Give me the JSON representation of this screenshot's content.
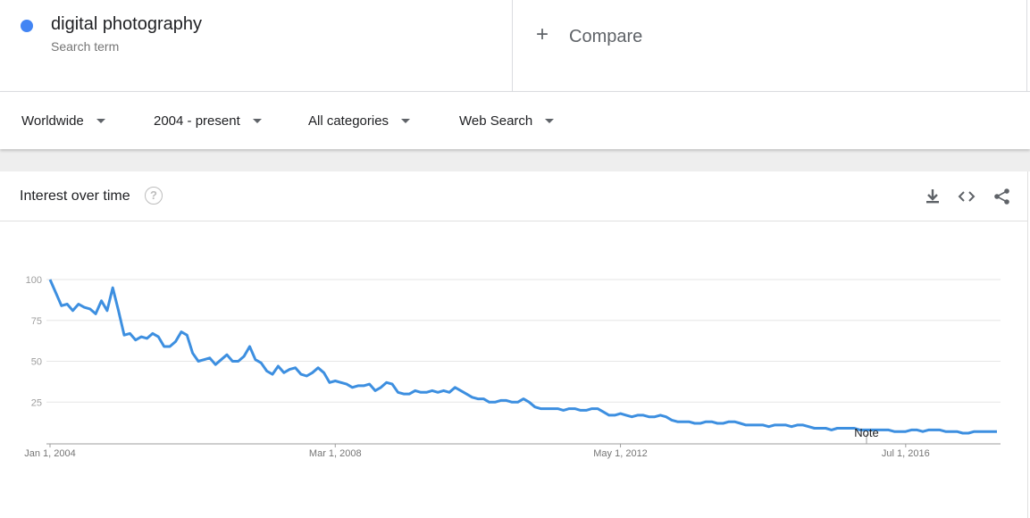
{
  "term": {
    "name": "digital photography",
    "subtitle": "Search term",
    "color": "#4285f4"
  },
  "compare": {
    "plus": "+",
    "label": "Compare"
  },
  "filters": {
    "region": "Worldwide",
    "time": "2004 - present",
    "category": "All categories",
    "property": "Web Search"
  },
  "card": {
    "title": "Interest over time",
    "help": "?",
    "icons": [
      "download-icon",
      "embed-icon",
      "share-icon"
    ]
  },
  "chart_data": {
    "type": "line",
    "x_start": "Jan 1, 2004",
    "step": "month",
    "ylim": [
      0,
      100
    ],
    "yticks": [
      25,
      50,
      75,
      100
    ],
    "xtick_labels": [
      "Jan 1, 2004",
      "Mar 1, 2008",
      "May 1, 2012",
      "Jul 1, 2016"
    ],
    "annotation": "Note",
    "grid": true,
    "color": "#3d8fe0",
    "series": [
      {
        "values": [
          100,
          92,
          84,
          85,
          81,
          85,
          83,
          82,
          79,
          87,
          81,
          95,
          81,
          66,
          67,
          63,
          65,
          64,
          67,
          65,
          59,
          59,
          62,
          68,
          66,
          55,
          50,
          51,
          52,
          48,
          51,
          54,
          50,
          50,
          53,
          59,
          51,
          49,
          44,
          42,
          47,
          43,
          45,
          46,
          42,
          41,
          43,
          46,
          43,
          37,
          38,
          37,
          36,
          34,
          35,
          35,
          36,
          32,
          34,
          37,
          36,
          31,
          30,
          30,
          32,
          31,
          31,
          32,
          31,
          32,
          31,
          34,
          32,
          30,
          28,
          27,
          27,
          25,
          25,
          26,
          26,
          25,
          25,
          27,
          25,
          22,
          21,
          21,
          21,
          21,
          20,
          21,
          21,
          20,
          20,
          21,
          21,
          19,
          17,
          17,
          18,
          17,
          16,
          17,
          17,
          16,
          16,
          17,
          16,
          14,
          13,
          13,
          13,
          12,
          12,
          13,
          13,
          12,
          12,
          13,
          13,
          12,
          11,
          11,
          11,
          11,
          10,
          11,
          11,
          11,
          10,
          11,
          11,
          10,
          9,
          9,
          9,
          8,
          9,
          9,
          9,
          9,
          8,
          8,
          8,
          8,
          8,
          8,
          7,
          7,
          7,
          8,
          8,
          7,
          8,
          8,
          8,
          7,
          7,
          7,
          6,
          6,
          7,
          7,
          7,
          7,
          7
        ]
      }
    ]
  }
}
